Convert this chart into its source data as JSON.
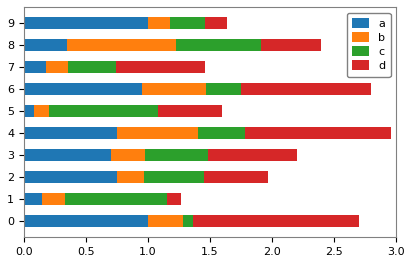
{
  "categories": [
    0,
    1,
    2,
    3,
    4,
    5,
    6,
    7,
    8,
    9
  ],
  "segments": {
    "a": [
      1.0,
      0.15,
      0.75,
      0.7,
      0.75,
      0.08,
      0.95,
      0.18,
      0.35,
      1.0
    ],
    "b": [
      0.28,
      0.18,
      0.22,
      0.28,
      0.65,
      0.12,
      0.52,
      0.18,
      0.88,
      0.18
    ],
    "c": [
      0.08,
      0.82,
      0.48,
      0.5,
      0.38,
      0.88,
      0.28,
      0.38,
      0.68,
      0.28
    ],
    "d": [
      1.34,
      0.12,
      0.52,
      0.72,
      1.18,
      0.52,
      1.05,
      0.72,
      0.48,
      0.18
    ]
  },
  "colors": {
    "a": "#1f77b4",
    "b": "#ff7f0e",
    "c": "#2ca02c",
    "d": "#d62728"
  },
  "bar_height": 0.55,
  "xlim": [
    0.0,
    3.0
  ],
  "xticks": [
    0.0,
    0.5,
    1.0,
    1.5,
    2.0,
    2.5,
    3.0
  ],
  "legend_labels": [
    "a",
    "b",
    "c",
    "d"
  ],
  "figsize": [
    4.12,
    2.64
  ],
  "dpi": 100
}
